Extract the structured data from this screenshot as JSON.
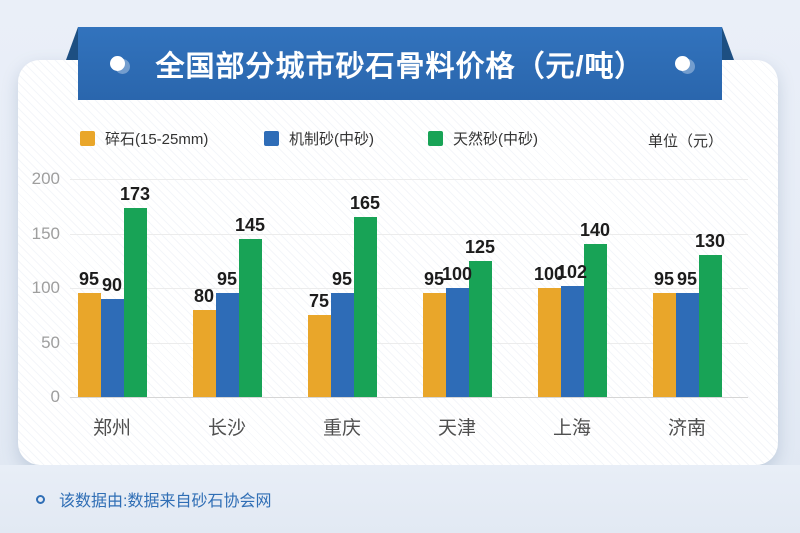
{
  "header": {
    "title": "全国部分城市砂石骨料价格（元/吨）"
  },
  "legend": {
    "unit_label": "单位（元）"
  },
  "chart_data": {
    "type": "bar",
    "title": "全国部分城市砂石骨料价格（元/吨）",
    "unit": "单位（元）",
    "categories": [
      "郑州",
      "长沙",
      "重庆",
      "天津",
      "上海",
      "济南"
    ],
    "series": [
      {
        "name": "碎石(15-25mm)",
        "color": "#e9a62a",
        "values": [
          95,
          80,
          75,
          95,
          100,
          95
        ]
      },
      {
        "name": "机制砂(中砂)",
        "color": "#2e6cb7",
        "values": [
          90,
          95,
          95,
          100,
          102,
          95
        ]
      },
      {
        "name": "天然砂(中砂)",
        "color": "#18a356",
        "values": [
          173,
          145,
          165,
          125,
          140,
          130
        ]
      }
    ],
    "xlabel": "",
    "ylabel": "",
    "ylim": [
      0,
      200
    ],
    "yticks": [
      0,
      50,
      100,
      150,
      200
    ],
    "grid": true,
    "legend_position": "top",
    "value_labels": true
  },
  "footer": {
    "note": "该数据由:数据来自砂石协会网"
  },
  "colors": {
    "banner": "#2c6ab3",
    "banner_fold": "#1d4f82",
    "accent_text": "#2f6eb5",
    "bar_yellow": "#e9a62a",
    "bar_blue": "#2e6cb7",
    "bar_green": "#18a356"
  }
}
